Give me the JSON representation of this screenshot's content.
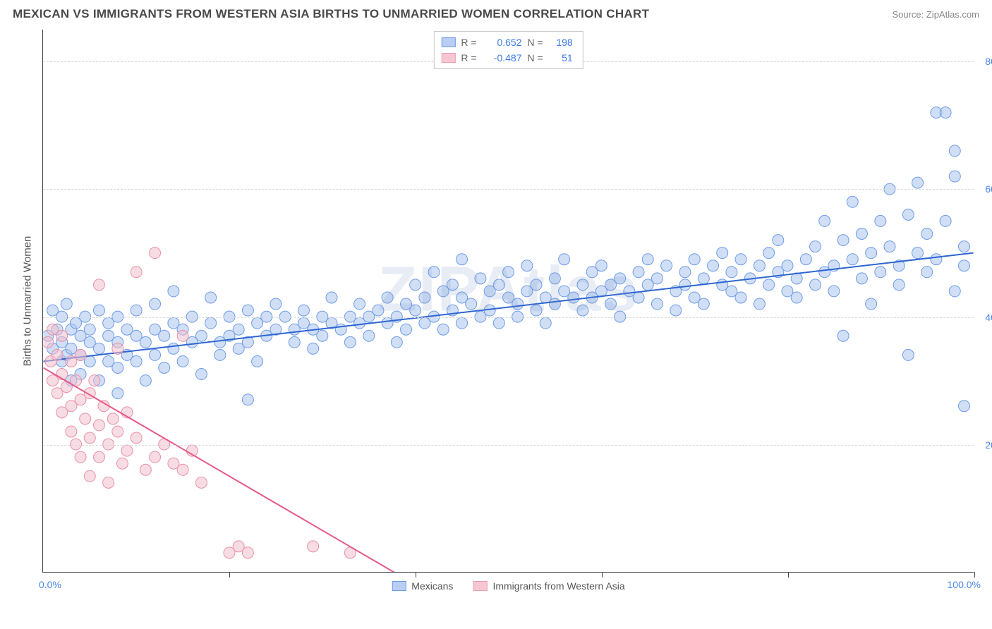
{
  "header": {
    "title": "MEXICAN VS IMMIGRANTS FROM WESTERN ASIA BIRTHS TO UNMARRIED WOMEN CORRELATION CHART",
    "source_prefix": "Source: ",
    "source_name": "ZipAtlas.com"
  },
  "watermark": "ZIPAtlas",
  "chart": {
    "type": "scatter",
    "y_axis_title": "Births to Unmarried Women",
    "background_color": "#ffffff",
    "grid_color": "#d9d9d9",
    "axis_color": "#444444",
    "xlim": [
      0,
      100
    ],
    "ylim": [
      0,
      85
    ],
    "x_tick_step": 20,
    "y_ticks": [
      20,
      40,
      60,
      80
    ],
    "y_tick_labels": [
      "20.0%",
      "40.0%",
      "60.0%",
      "80.0%"
    ],
    "x_min_label": "0.0%",
    "x_max_label": "100.0%",
    "marker_radius": 8,
    "marker_opacity": 0.55,
    "line_width": 2
  },
  "legend_top": {
    "rows": [
      {
        "swatch_fill": "#b9cef2",
        "swatch_stroke": "#6f9be8",
        "R_label": "R =",
        "R": "0.652",
        "N_label": "N =",
        "N": "198"
      },
      {
        "swatch_fill": "#f6c7d3",
        "swatch_stroke": "#ea9db2",
        "R_label": "R =",
        "R": "-0.487",
        "N_label": "N =",
        "N": "51"
      }
    ]
  },
  "legend_bottom": {
    "items": [
      {
        "swatch_fill": "#b9cef2",
        "swatch_stroke": "#6f9be8",
        "label": "Mexicans"
      },
      {
        "swatch_fill": "#f6c7d3",
        "swatch_stroke": "#ea9db2",
        "label": "Immigrants from Western Asia"
      }
    ]
  },
  "series": [
    {
      "name": "Mexicans",
      "color_fill": "#a9c4ee",
      "color_stroke": "#6f9be8",
      "trend": {
        "x1": 0,
        "y1": 33,
        "x2": 100,
        "y2": 50,
        "color": "#2e66d0"
      },
      "points": [
        [
          0.5,
          37
        ],
        [
          1,
          35
        ],
        [
          1,
          41
        ],
        [
          1.5,
          38
        ],
        [
          2,
          33
        ],
        [
          2,
          40
        ],
        [
          2,
          36
        ],
        [
          2.5,
          34
        ],
        [
          2.5,
          42
        ],
        [
          3,
          38
        ],
        [
          3,
          30
        ],
        [
          3,
          35
        ],
        [
          3.5,
          39
        ],
        [
          4,
          34
        ],
        [
          4,
          37
        ],
        [
          4,
          31
        ],
        [
          4.5,
          40
        ],
        [
          5,
          36
        ],
        [
          5,
          33
        ],
        [
          5,
          38
        ],
        [
          6,
          35
        ],
        [
          6,
          41
        ],
        [
          6,
          30
        ],
        [
          7,
          37
        ],
        [
          7,
          33
        ],
        [
          7,
          39
        ],
        [
          8,
          36
        ],
        [
          8,
          32
        ],
        [
          8,
          40
        ],
        [
          8,
          28
        ],
        [
          9,
          38
        ],
        [
          9,
          34
        ],
        [
          10,
          37
        ],
        [
          10,
          41
        ],
        [
          10,
          33
        ],
        [
          11,
          36
        ],
        [
          11,
          30
        ],
        [
          12,
          38
        ],
        [
          12,
          34
        ],
        [
          12,
          42
        ],
        [
          13,
          37
        ],
        [
          13,
          32
        ],
        [
          14,
          39
        ],
        [
          14,
          35
        ],
        [
          14,
          44
        ],
        [
          15,
          38
        ],
        [
          15,
          33
        ],
        [
          16,
          40
        ],
        [
          16,
          36
        ],
        [
          17,
          37
        ],
        [
          17,
          31
        ],
        [
          18,
          39
        ],
        [
          18,
          43
        ],
        [
          19,
          36
        ],
        [
          19,
          34
        ],
        [
          20,
          40
        ],
        [
          20,
          37
        ],
        [
          21,
          38
        ],
        [
          21,
          35
        ],
        [
          22,
          41
        ],
        [
          22,
          36
        ],
        [
          22,
          27
        ],
        [
          23,
          39
        ],
        [
          23,
          33
        ],
        [
          24,
          40
        ],
        [
          24,
          37
        ],
        [
          25,
          38
        ],
        [
          25,
          42
        ],
        [
          26,
          40
        ],
        [
          27,
          38
        ],
        [
          27,
          36
        ],
        [
          28,
          39
        ],
        [
          28,
          41
        ],
        [
          29,
          38
        ],
        [
          29,
          35
        ],
        [
          30,
          40
        ],
        [
          30,
          37
        ],
        [
          31,
          39
        ],
        [
          31,
          43
        ],
        [
          32,
          38
        ],
        [
          33,
          40
        ],
        [
          33,
          36
        ],
        [
          34,
          39
        ],
        [
          34,
          42
        ],
        [
          35,
          40
        ],
        [
          35,
          37
        ],
        [
          36,
          41
        ],
        [
          37,
          39
        ],
        [
          37,
          43
        ],
        [
          38,
          40
        ],
        [
          38,
          36
        ],
        [
          39,
          42
        ],
        [
          39,
          38
        ],
        [
          40,
          45
        ],
        [
          40,
          41
        ],
        [
          41,
          39
        ],
        [
          41,
          43
        ],
        [
          42,
          40
        ],
        [
          42,
          47
        ],
        [
          43,
          44
        ],
        [
          43,
          38
        ],
        [
          44,
          41
        ],
        [
          44,
          45
        ],
        [
          45,
          43
        ],
        [
          45,
          39
        ],
        [
          45,
          49
        ],
        [
          46,
          42
        ],
        [
          47,
          40
        ],
        [
          47,
          46
        ],
        [
          48,
          44
        ],
        [
          48,
          41
        ],
        [
          49,
          45
        ],
        [
          49,
          39
        ],
        [
          50,
          43
        ],
        [
          50,
          47
        ],
        [
          51,
          42
        ],
        [
          51,
          40
        ],
        [
          52,
          44
        ],
        [
          52,
          48
        ],
        [
          53,
          41
        ],
        [
          53,
          45
        ],
        [
          54,
          43
        ],
        [
          54,
          39
        ],
        [
          55,
          46
        ],
        [
          55,
          42
        ],
        [
          56,
          44
        ],
        [
          56,
          49
        ],
        [
          57,
          43
        ],
        [
          58,
          45
        ],
        [
          58,
          41
        ],
        [
          59,
          47
        ],
        [
          59,
          43
        ],
        [
          60,
          44
        ],
        [
          60,
          48
        ],
        [
          61,
          42
        ],
        [
          61,
          45
        ],
        [
          62,
          46
        ],
        [
          62,
          40
        ],
        [
          63,
          44
        ],
        [
          64,
          47
        ],
        [
          64,
          43
        ],
        [
          65,
          45
        ],
        [
          65,
          49
        ],
        [
          66,
          42
        ],
        [
          66,
          46
        ],
        [
          67,
          48
        ],
        [
          68,
          44
        ],
        [
          68,
          41
        ],
        [
          69,
          47
        ],
        [
          69,
          45
        ],
        [
          70,
          43
        ],
        [
          70,
          49
        ],
        [
          71,
          46
        ],
        [
          71,
          42
        ],
        [
          72,
          48
        ],
        [
          73,
          45
        ],
        [
          73,
          50
        ],
        [
          74,
          44
        ],
        [
          74,
          47
        ],
        [
          75,
          49
        ],
        [
          75,
          43
        ],
        [
          76,
          46
        ],
        [
          77,
          48
        ],
        [
          77,
          42
        ],
        [
          78,
          50
        ],
        [
          78,
          45
        ],
        [
          79,
          47
        ],
        [
          79,
          52
        ],
        [
          80,
          44
        ],
        [
          80,
          48
        ],
        [
          81,
          46
        ],
        [
          81,
          43
        ],
        [
          82,
          49
        ],
        [
          83,
          51
        ],
        [
          83,
          45
        ],
        [
          84,
          47
        ],
        [
          84,
          55
        ],
        [
          85,
          48
        ],
        [
          85,
          44
        ],
        [
          86,
          52
        ],
        [
          86,
          37
        ],
        [
          87,
          49
        ],
        [
          87,
          58
        ],
        [
          88,
          46
        ],
        [
          88,
          53
        ],
        [
          89,
          50
        ],
        [
          89,
          42
        ],
        [
          90,
          55
        ],
        [
          90,
          47
        ],
        [
          91,
          51
        ],
        [
          91,
          60
        ],
        [
          92,
          48
        ],
        [
          92,
          45
        ],
        [
          93,
          56
        ],
        [
          93,
          34
        ],
        [
          94,
          50
        ],
        [
          94,
          61
        ],
        [
          95,
          53
        ],
        [
          95,
          47
        ],
        [
          96,
          72
        ],
        [
          96,
          49
        ],
        [
          97,
          72
        ],
        [
          97,
          55
        ],
        [
          98,
          66
        ],
        [
          98,
          44
        ],
        [
          98,
          62
        ],
        [
          99,
          51
        ],
        [
          99,
          48
        ],
        [
          99,
          26
        ]
      ]
    },
    {
      "name": "Immigrants from Western Asia",
      "color_fill": "#f3bfcc",
      "color_stroke": "#e890a8",
      "trend": {
        "x1": 0,
        "y1": 32,
        "x2": 40,
        "y2": -2,
        "color": "#e75a8a"
      },
      "points": [
        [
          0.5,
          36
        ],
        [
          0.8,
          33
        ],
        [
          1,
          38
        ],
        [
          1,
          30
        ],
        [
          1.5,
          34
        ],
        [
          1.5,
          28
        ],
        [
          2,
          31
        ],
        [
          2,
          37
        ],
        [
          2,
          25
        ],
        [
          2.5,
          29
        ],
        [
          3,
          33
        ],
        [
          3,
          26
        ],
        [
          3,
          22
        ],
        [
          3.5,
          30
        ],
        [
          3.5,
          20
        ],
        [
          4,
          27
        ],
        [
          4,
          34
        ],
        [
          4,
          18
        ],
        [
          4.5,
          24
        ],
        [
          5,
          28
        ],
        [
          5,
          21
        ],
        [
          5,
          15
        ],
        [
          5.5,
          30
        ],
        [
          6,
          23
        ],
        [
          6,
          18
        ],
        [
          6,
          45
        ],
        [
          6.5,
          26
        ],
        [
          7,
          20
        ],
        [
          7,
          14
        ],
        [
          7.5,
          24
        ],
        [
          8,
          22
        ],
        [
          8,
          35
        ],
        [
          8.5,
          17
        ],
        [
          9,
          19
        ],
        [
          9,
          25
        ],
        [
          10,
          21
        ],
        [
          10,
          47
        ],
        [
          11,
          16
        ],
        [
          12,
          18
        ],
        [
          12,
          50
        ],
        [
          13,
          20
        ],
        [
          14,
          17
        ],
        [
          15,
          16
        ],
        [
          15,
          37
        ],
        [
          16,
          19
        ],
        [
          17,
          14
        ],
        [
          20,
          3
        ],
        [
          21,
          4
        ],
        [
          22,
          3
        ],
        [
          29,
          4
        ],
        [
          33,
          3
        ]
      ]
    }
  ]
}
